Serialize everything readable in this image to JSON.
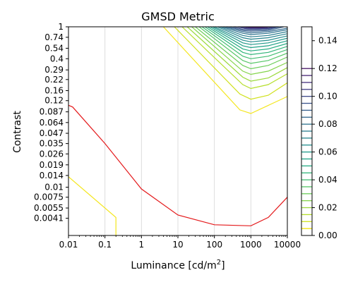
{
  "chart_data": {
    "type": "contour",
    "title": "GMSD Metric",
    "xlabel": "Luminance [cd/m",
    "xlabel_sup": "2",
    "xlabel_end": "]",
    "ylabel": "Contrast",
    "xscale": "log",
    "yscale": "log",
    "xlim": [
      0.01,
      10000
    ],
    "ylim": [
      0.0025,
      1
    ],
    "grid": "vertical lines at decades",
    "x_ticks": [
      {
        "value": 0.01,
        "label": "0.01"
      },
      {
        "value": 0.1,
        "label": "0.1"
      },
      {
        "value": 1,
        "label": "1"
      },
      {
        "value": 10,
        "label": "10"
      },
      {
        "value": 100,
        "label": "100"
      },
      {
        "value": 1000,
        "label": "1000"
      },
      {
        "value": 10000,
        "label": "10000"
      }
    ],
    "y_ticks": [
      {
        "value": 1,
        "label": "1"
      },
      {
        "value": 0.74,
        "label": "0.74"
      },
      {
        "value": 0.54,
        "label": "0.54"
      },
      {
        "value": 0.4,
        "label": "0.4"
      },
      {
        "value": 0.29,
        "label": "0.29"
      },
      {
        "value": 0.22,
        "label": "0.22"
      },
      {
        "value": 0.16,
        "label": "0.16"
      },
      {
        "value": 0.12,
        "label": "0.12"
      },
      {
        "value": 0.087,
        "label": "0.087"
      },
      {
        "value": 0.064,
        "label": "0.064"
      },
      {
        "value": 0.047,
        "label": "0.047"
      },
      {
        "value": 0.035,
        "label": "0.035"
      },
      {
        "value": 0.026,
        "label": "0.026"
      },
      {
        "value": 0.019,
        "label": "0.019"
      },
      {
        "value": 0.014,
        "label": "0.014"
      },
      {
        "value": 0.01,
        "label": "0.01"
      },
      {
        "value": 0.0075,
        "label": "0.0075"
      },
      {
        "value": 0.0055,
        "label": "0.0055"
      },
      {
        "value": 0.0041,
        "label": "0.0041"
      }
    ],
    "colorbar": {
      "range": [
        0,
        0.15
      ],
      "colormap": "viridis_r",
      "ticks": [
        {
          "value": 0.0,
          "label": "0.00"
        },
        {
          "value": 0.02,
          "label": "0.02"
        },
        {
          "value": 0.04,
          "label": "0.04"
        },
        {
          "value": 0.06,
          "label": "0.06"
        },
        {
          "value": 0.08,
          "label": "0.08"
        },
        {
          "value": 0.1,
          "label": "0.10"
        },
        {
          "value": 0.12,
          "label": "0.12"
        },
        {
          "value": 0.14,
          "label": "0.14"
        }
      ],
      "level_step": 0.005
    },
    "red_curve": {
      "color": "#e41a1c",
      "points": [
        [
          0.01,
          0.105
        ],
        [
          0.013,
          0.1
        ],
        [
          0.1,
          0.035
        ],
        [
          1,
          0.0095
        ],
        [
          10,
          0.0045
        ],
        [
          100,
          0.0034
        ],
        [
          1000,
          0.0033
        ],
        [
          3000,
          0.0042
        ],
        [
          10000,
          0.0075
        ]
      ]
    },
    "contours": [
      {
        "level": 0.005,
        "color": "#f4e61e",
        "points": [
          [
            0.01,
            0.0135
          ],
          [
            0.2,
            0.0042
          ],
          [
            0.2,
            0.0025
          ]
        ]
      },
      {
        "level": 0.005,
        "color": "#f4e61e",
        "points": [
          [
            4,
            1.0
          ],
          [
            500,
            0.092
          ],
          [
            1000,
            0.083
          ],
          [
            10000,
            0.135
          ]
        ]
      },
      {
        "level": 0.01,
        "color": "#d0e11c",
        "points": [
          [
            8,
            1.0
          ],
          [
            500,
            0.145
          ],
          [
            1000,
            0.125
          ],
          [
            3000,
            0.14
          ],
          [
            10000,
            0.2
          ]
        ]
      },
      {
        "level": 0.015,
        "color": "#b5de2b",
        "points": [
          [
            13,
            1.0
          ],
          [
            600,
            0.19
          ],
          [
            1000,
            0.17
          ],
          [
            3000,
            0.19
          ],
          [
            10000,
            0.26
          ]
        ]
      },
      {
        "level": 0.02,
        "color": "#9bd93c",
        "points": [
          [
            18,
            1.0
          ],
          [
            600,
            0.235
          ],
          [
            1000,
            0.21
          ],
          [
            3000,
            0.23
          ],
          [
            10000,
            0.31
          ]
        ]
      },
      {
        "level": 0.025,
        "color": "#84d44b",
        "points": [
          [
            24,
            1.0
          ],
          [
            600,
            0.28
          ],
          [
            1000,
            0.255
          ],
          [
            3000,
            0.28
          ],
          [
            10000,
            0.36
          ]
        ]
      },
      {
        "level": 0.03,
        "color": "#6ccd5a",
        "points": [
          [
            30,
            1.0
          ],
          [
            600,
            0.33
          ],
          [
            1000,
            0.3
          ],
          [
            3000,
            0.33
          ],
          [
            10000,
            0.42
          ]
        ]
      },
      {
        "level": 0.035,
        "color": "#56c667",
        "points": [
          [
            38,
            1.0
          ],
          [
            600,
            0.38
          ],
          [
            1000,
            0.35
          ],
          [
            3000,
            0.38
          ],
          [
            10000,
            0.47
          ]
        ]
      },
      {
        "level": 0.04,
        "color": "#42be71",
        "points": [
          [
            46,
            1.0
          ],
          [
            600,
            0.43
          ],
          [
            1000,
            0.4
          ],
          [
            3000,
            0.43
          ],
          [
            10000,
            0.52
          ]
        ]
      },
      {
        "level": 0.045,
        "color": "#32b67a",
        "points": [
          [
            55,
            1.0
          ],
          [
            600,
            0.48
          ],
          [
            1000,
            0.45
          ],
          [
            3000,
            0.48
          ],
          [
            10000,
            0.57
          ]
        ]
      },
      {
        "level": 0.05,
        "color": "#25ac82",
        "points": [
          [
            65,
            1.0
          ],
          [
            600,
            0.53
          ],
          [
            1000,
            0.5
          ],
          [
            3000,
            0.53
          ],
          [
            10000,
            0.62
          ]
        ]
      },
      {
        "level": 0.055,
        "color": "#1fa287",
        "points": [
          [
            76,
            1.0
          ],
          [
            600,
            0.58
          ],
          [
            1000,
            0.55
          ],
          [
            3000,
            0.58
          ],
          [
            10000,
            0.67
          ]
        ]
      },
      {
        "level": 0.06,
        "color": "#1f998a",
        "points": [
          [
            88,
            1.0
          ],
          [
            600,
            0.63
          ],
          [
            1000,
            0.6
          ],
          [
            3000,
            0.63
          ],
          [
            10000,
            0.72
          ]
        ]
      },
      {
        "level": 0.065,
        "color": "#228d8d",
        "points": [
          [
            100,
            1.0
          ],
          [
            600,
            0.68
          ],
          [
            1000,
            0.65
          ],
          [
            3000,
            0.68
          ],
          [
            10000,
            0.77
          ]
        ]
      },
      {
        "level": 0.07,
        "color": "#25848e",
        "points": [
          [
            120,
            1.0
          ],
          [
            600,
            0.73
          ],
          [
            1000,
            0.7
          ],
          [
            3000,
            0.73
          ],
          [
            10000,
            0.82
          ]
        ]
      },
      {
        "level": 0.075,
        "color": "#287c8e",
        "points": [
          [
            140,
            1.0
          ],
          [
            600,
            0.78
          ],
          [
            1000,
            0.75
          ],
          [
            3000,
            0.78
          ],
          [
            10000,
            0.87
          ]
        ]
      },
      {
        "level": 0.08,
        "color": "#2c728e",
        "points": [
          [
            165,
            1.0
          ],
          [
            600,
            0.83
          ],
          [
            1000,
            0.8
          ],
          [
            3000,
            0.83
          ],
          [
            10000,
            0.92
          ]
        ]
      },
      {
        "level": 0.085,
        "color": "#31688e",
        "points": [
          [
            200,
            1.0
          ],
          [
            600,
            0.87
          ],
          [
            1000,
            0.84
          ],
          [
            3000,
            0.87
          ],
          [
            10000,
            0.96
          ]
        ]
      },
      {
        "level": 0.09,
        "color": "#355f8d",
        "points": [
          [
            250,
            1.0
          ],
          [
            600,
            0.9
          ],
          [
            1000,
            0.88
          ],
          [
            3000,
            0.9
          ],
          [
            8000,
            1.0
          ]
        ]
      },
      {
        "level": 0.095,
        "color": "#3a548c",
        "points": [
          [
            320,
            1.0
          ],
          [
            600,
            0.93
          ],
          [
            1000,
            0.91
          ],
          [
            3000,
            0.93
          ],
          [
            6000,
            1.0
          ]
        ]
      },
      {
        "level": 0.1,
        "color": "#3e4989",
        "points": [
          [
            420,
            1.0
          ],
          [
            700,
            0.95
          ],
          [
            1000,
            0.94
          ],
          [
            3000,
            0.95
          ],
          [
            5000,
            1.0
          ]
        ]
      },
      {
        "level": 0.105,
        "color": "#433e85",
        "points": [
          [
            520,
            1.0
          ],
          [
            800,
            0.965
          ],
          [
            1000,
            0.96
          ],
          [
            2500,
            0.965
          ],
          [
            4200,
            1.0
          ]
        ]
      },
      {
        "level": 0.11,
        "color": "#46317e",
        "points": [
          [
            620,
            1.0
          ],
          [
            900,
            0.978
          ],
          [
            1000,
            0.975
          ],
          [
            2200,
            0.978
          ],
          [
            3600,
            1.0
          ]
        ]
      },
      {
        "level": 0.115,
        "color": "#482475",
        "points": [
          [
            720,
            1.0
          ],
          [
            1000,
            0.988
          ],
          [
            2000,
            0.988
          ],
          [
            3000,
            1.0
          ]
        ]
      },
      {
        "level": 0.12,
        "color": "#471365",
        "points": [
          [
            850,
            1.0
          ],
          [
            1200,
            0.994
          ],
          [
            2000,
            0.994
          ],
          [
            2600,
            1.0
          ]
        ]
      }
    ]
  }
}
